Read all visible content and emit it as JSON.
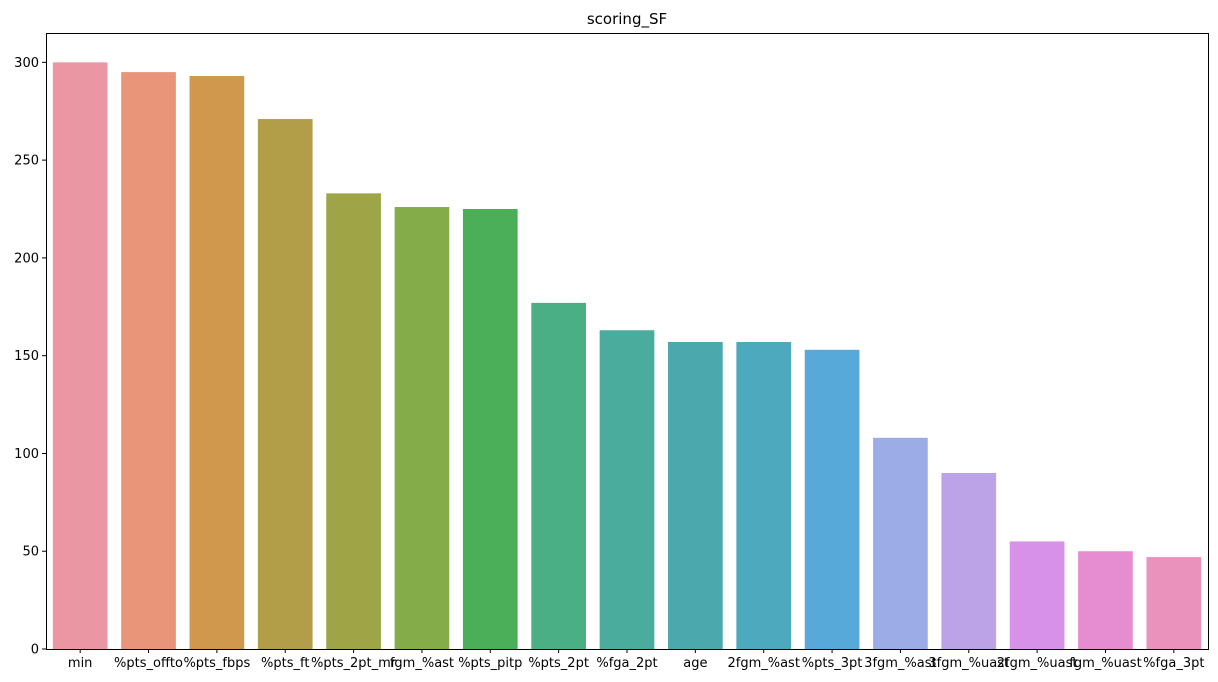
{
  "chart_data": {
    "type": "bar",
    "title": "scoring_SF",
    "xlabel": "",
    "ylabel": "",
    "categories": [
      "min",
      "%pts_offto",
      "%pts_fbps",
      "%pts_ft",
      "%pts_2pt_mr",
      "fgm_%ast",
      "%pts_pitp",
      "%pts_2pt",
      "%fga_2pt",
      "age",
      "2fgm_%ast",
      "%pts_3pt",
      "3fgm_%ast",
      "3fgm_%uast",
      "2fgm_%uast",
      "fgm_%uast",
      "%fga_3pt"
    ],
    "values": [
      300,
      295,
      293,
      271,
      233,
      226,
      225,
      177,
      163,
      157,
      157,
      153,
      108,
      90,
      55,
      50,
      47
    ],
    "colors": [
      "#ea96a3",
      "#e8957a",
      "#d0984c",
      "#b29d48",
      "#9ea547",
      "#84ac48",
      "#4aaf58",
      "#4aaf83",
      "#4aac9c",
      "#4ba9ae",
      "#4daabe",
      "#56a9d8",
      "#9aade6",
      "#bca3e8",
      "#d891e8",
      "#e68dd2",
      "#e993bc"
    ],
    "ylim": [
      0,
      315
    ],
    "yticks": [
      0,
      50,
      100,
      150,
      200,
      250,
      300
    ],
    "grid": false,
    "legend": "none"
  }
}
